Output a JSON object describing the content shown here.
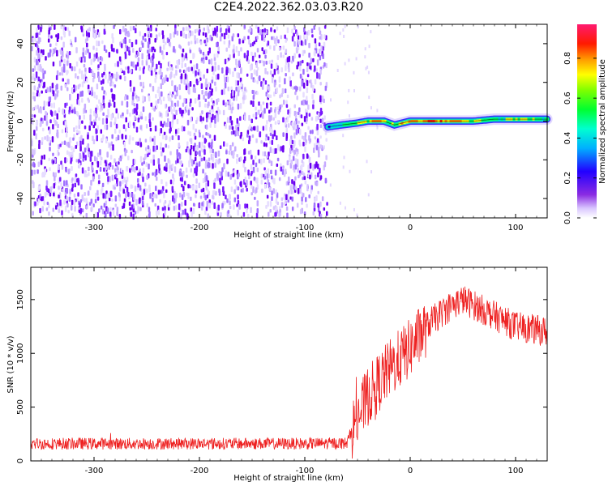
{
  "title": "C2E4.2022.362.03.03.R20",
  "colors": {
    "snr_line": "#ee2222",
    "spectrum_track": "#00cc66",
    "background_speckle": "#7a1aff"
  },
  "colorbar": {
    "label": "Normalized spectral amplitude",
    "ticks": [
      "0.0",
      "0.2",
      "0.4",
      "0.6",
      "0.8"
    ],
    "tick_values": [
      0.0,
      0.2,
      0.4,
      0.6,
      0.8
    ],
    "range": [
      0,
      0.97
    ],
    "colormap": "rainbow (white-violet-blue-cyan-green-yellow-orange-red-magenta)"
  },
  "chart_data": [
    {
      "type": "heatmap",
      "title": "C2E4.2022.362.03.03.R20",
      "xlabel": "Height of straight line (km)",
      "ylabel": "Frequency (Hz)",
      "xlim": [
        -360,
        130
      ],
      "ylim": [
        -50,
        50
      ],
      "x_ticks": [
        -300,
        -200,
        -100,
        0,
        100
      ],
      "x_tick_labels": [
        "-300",
        "-200",
        "-100",
        "0",
        "100"
      ],
      "y_ticks": [
        -40,
        -20,
        0,
        20,
        40
      ],
      "y_tick_labels": [
        "-40",
        "-20",
        "0",
        "20",
        "40"
      ],
      "noise_region_x": [
        -360,
        -78
      ],
      "signal_track": {
        "x": [
          -78,
          -65,
          -50,
          -40,
          -25,
          -15,
          0,
          20,
          40,
          60,
          80,
          100,
          130
        ],
        "frequency": [
          -3,
          -2,
          -1,
          0,
          0,
          -2,
          0,
          0,
          0,
          0,
          1,
          1,
          1
        ],
        "amplitude": [
          0.4,
          0.55,
          0.75,
          0.85,
          0.8,
          0.7,
          0.9,
          0.95,
          0.85,
          0.7,
          0.6,
          0.75,
          0.6
        ]
      }
    },
    {
      "type": "line",
      "xlabel": "Height of straight line (km)",
      "ylabel": "SNR (10 * v/v)",
      "xlim": [
        -360,
        130
      ],
      "ylim": [
        0,
        1800
      ],
      "x_ticks": [
        -300,
        -200,
        -100,
        0,
        100
      ],
      "x_tick_labels": [
        "-300",
        "-200",
        "-100",
        "0",
        "100"
      ],
      "y_ticks": [
        0,
        500,
        1000,
        1500
      ],
      "y_tick_labels": [
        "0",
        "500",
        "1000",
        "1500"
      ],
      "series": [
        {
          "x": [
            -360,
            -300,
            -200,
            -100,
            -60,
            -55,
            -40,
            -20,
            0,
            20,
            40,
            50,
            60,
            80,
            100,
            130
          ],
          "y": [
            160,
            160,
            160,
            160,
            165,
            300,
            600,
            850,
            1050,
            1300,
            1450,
            1500,
            1450,
            1350,
            1250,
            1200
          ]
        }
      ]
    }
  ]
}
